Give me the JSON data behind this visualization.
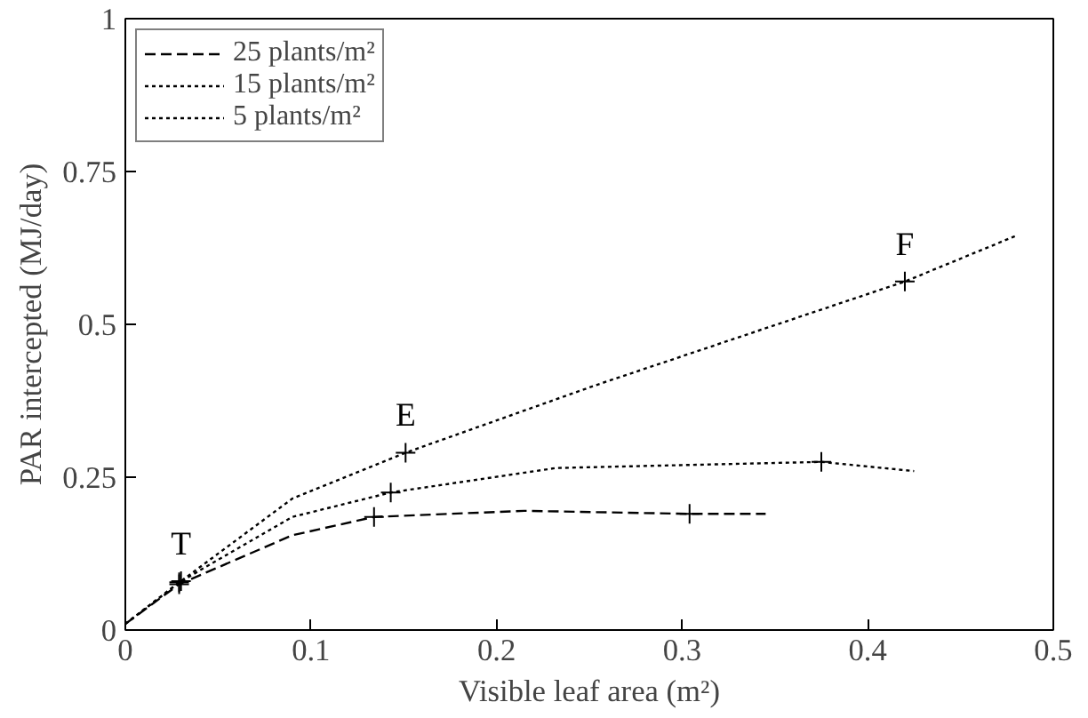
{
  "chart_data": {
    "type": "line",
    "xlabel": "Visible leaf area (m²)",
    "ylabel": "PAR intercepted (MJ/day)",
    "xlim": [
      0,
      0.5
    ],
    "ylim": [
      0,
      1
    ],
    "xticks": [
      0,
      0.1,
      0.2,
      0.3,
      0.4,
      0.5
    ],
    "yticks": [
      0,
      {
        "value": 0.25,
        "label": "0.25"
      },
      {
        "value": 0.5,
        "label": "0.5"
      },
      {
        "value": 0.75,
        "label": "0.75"
      },
      1
    ],
    "grid": false,
    "legend": "top left",
    "marker": "none",
    "series": [
      {
        "name": "25 plants/m²",
        "color": "#000000",
        "line_style": "dashed",
        "x": [
          0,
          0.029,
          0.09,
          0.134,
          0.215,
          0.304,
          0.345
        ],
        "values": [
          0.01,
          0.075,
          0.155,
          0.185,
          0.195,
          0.19,
          0.19
        ]
      },
      {
        "name": "15 plants/m²",
        "color": "#000000",
        "line_style": "dotted",
        "x": [
          0,
          0.029,
          0.09,
          0.143,
          0.232,
          0.375,
          0.425
        ],
        "values": [
          0.01,
          0.078,
          0.185,
          0.225,
          0.265,
          0.275,
          0.26
        ]
      },
      {
        "name": "5 plants/m²",
        "color": "#000000",
        "line_style": "dotted",
        "x": [
          0,
          0.03,
          0.09,
          0.151,
          0.253,
          0.42,
          0.48
        ],
        "values": [
          0.01,
          0.08,
          0.215,
          0.29,
          0.4,
          0.57,
          0.645
        ]
      },
      {
        "type": "scatter",
        "marker": "cross",
        "color": "#000000",
        "x": [
          0.029,
          0.134,
          0.304,
          0.029,
          0.143,
          0.375,
          0.03,
          0.151,
          0.42
        ],
        "values": [
          0.075,
          0.185,
          0.19,
          0.078,
          0.225,
          0.275,
          0.08,
          0.29,
          0.57
        ]
      }
    ],
    "annotations": [
      {
        "text": "T",
        "x": 0.03,
        "y": 0.08
      },
      {
        "text": "E",
        "x": 0.151,
        "y": 0.29
      },
      {
        "text": "F",
        "x": 0.42,
        "y": 0.57
      }
    ]
  }
}
